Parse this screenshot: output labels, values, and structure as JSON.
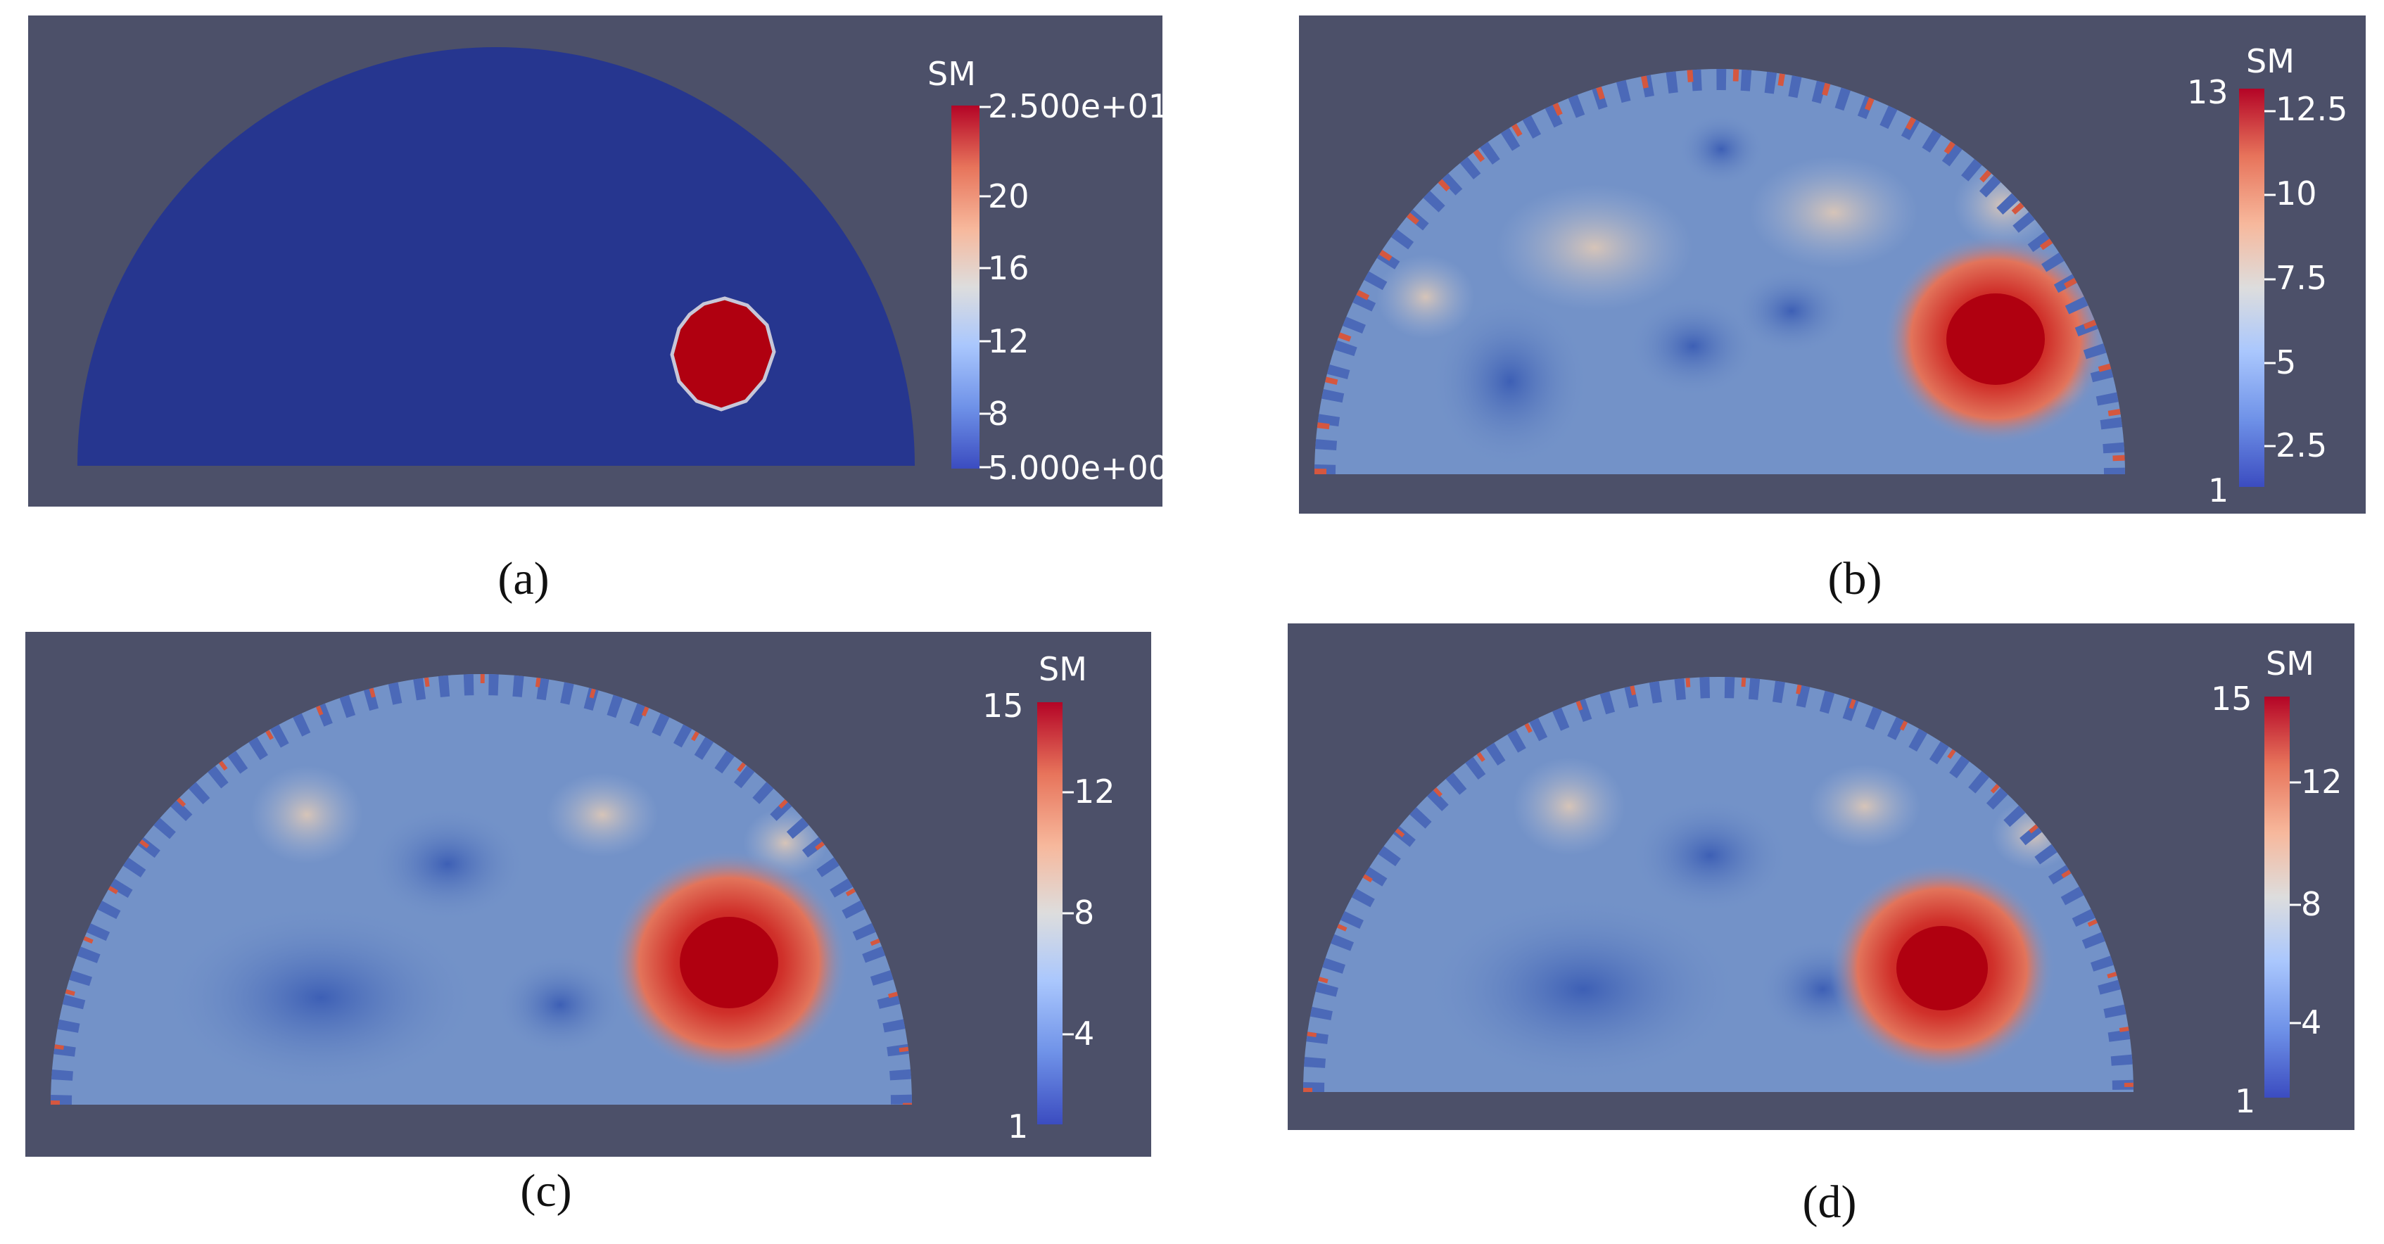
{
  "panels": {
    "a": {
      "caption": "(a)",
      "colorbar": {
        "title": "SM",
        "ticks": [
          "2.500e+01",
          "20",
          "16",
          "12",
          "8",
          "5.000e+00"
        ]
      }
    },
    "b": {
      "caption": "(b)",
      "colorbar": {
        "title": "SM",
        "max_label": "13",
        "min_label": "1",
        "ticks": [
          "12.5",
          "10",
          "7.5",
          "5",
          "2.5"
        ]
      }
    },
    "c": {
      "caption": "(c)",
      "colorbar": {
        "title": "SM",
        "max_label": "15",
        "min_label": "1",
        "ticks": [
          "12",
          "8",
          "4"
        ]
      }
    },
    "d": {
      "caption": "(d)",
      "colorbar": {
        "title": "SM",
        "max_label": "15",
        "min_label": "1",
        "ticks": [
          "12",
          "8",
          "4"
        ]
      }
    }
  },
  "colors": {
    "background": "#4c5069",
    "domain_uniform": "#26368f",
    "domain_reconstructed": "#6f8fc7",
    "inclusion": "#b00010",
    "colormap": [
      "#3b4cc0",
      "#6f92e8",
      "#aac7fd",
      "#dddddd",
      "#f7b89c",
      "#e7745b",
      "#b40426"
    ]
  }
}
